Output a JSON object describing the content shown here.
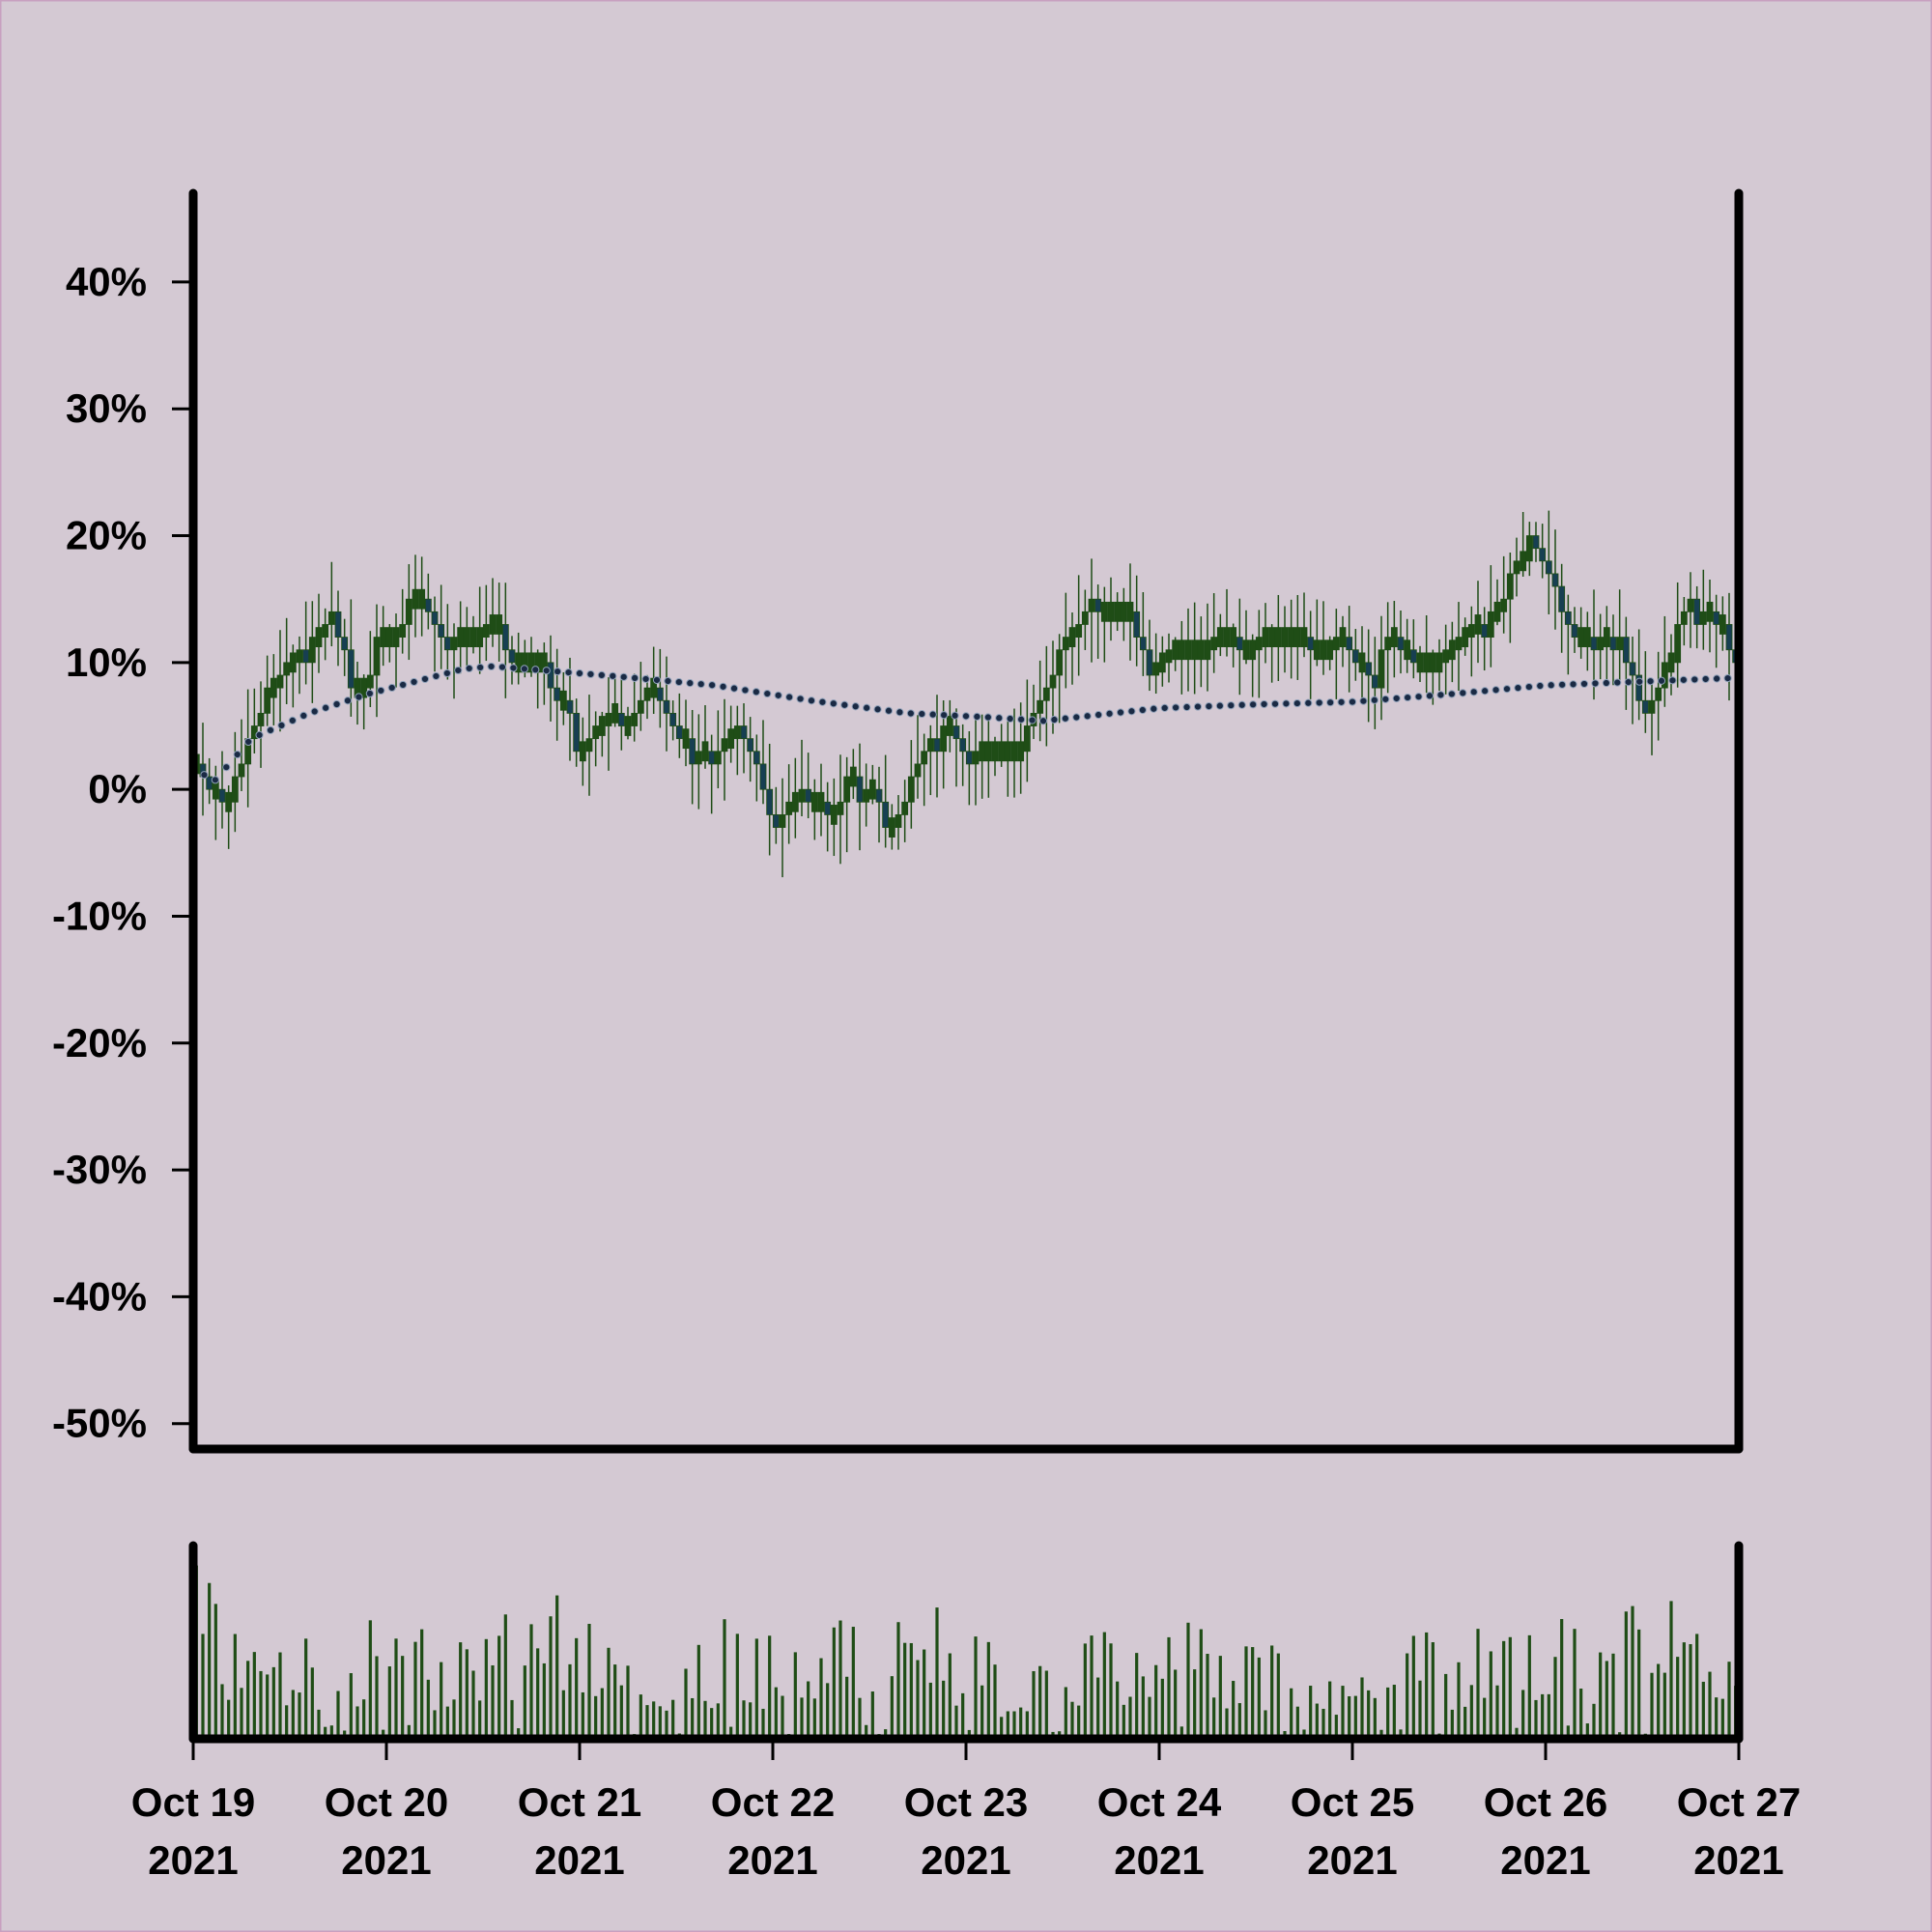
{
  "colors": {
    "background": "#d4c9d3",
    "frame": "#c8a0c0",
    "axis": "#000000",
    "candle_up": "#1f4d16",
    "candle_down": "#173f52",
    "moving_average": "#1a2a44",
    "volume": "#1f4d16"
  },
  "chart_data": {
    "type": "candlestick",
    "title": "",
    "xlabel": "",
    "ylabel": "",
    "ylim": [
      -52,
      47
    ],
    "yticks": [
      "-50%",
      "-40%",
      "-30%",
      "-20%",
      "-10%",
      "0%",
      "10%",
      "20%",
      "30%",
      "40%"
    ],
    "xticks": [
      {
        "date": "2021-10-19",
        "line1": "Oct 19",
        "line2": "2021"
      },
      {
        "date": "2021-10-20",
        "line1": "Oct 20",
        "line2": "2021"
      },
      {
        "date": "2021-10-21",
        "line1": "Oct 21",
        "line2": "2021"
      },
      {
        "date": "2021-10-22",
        "line1": "Oct 22",
        "line2": "2021"
      },
      {
        "date": "2021-10-23",
        "line1": "Oct 23",
        "line2": "2021"
      },
      {
        "date": "2021-10-24",
        "line1": "Oct 24",
        "line2": "2021"
      },
      {
        "date": "2021-10-25",
        "line1": "Oct 25",
        "line2": "2021"
      },
      {
        "date": "2021-10-26",
        "line1": "Oct 26",
        "line2": "2021"
      },
      {
        "date": "2021-10-27",
        "line1": "Oct 27",
        "line2": "2021"
      }
    ],
    "x_range": [
      "2021-10-19",
      "2021-10-27"
    ],
    "close_path": [
      [
        0.0,
        2
      ],
      [
        0.1,
        0
      ],
      [
        0.17,
        -2
      ],
      [
        0.3,
        5
      ],
      [
        0.4,
        8
      ],
      [
        0.55,
        11
      ],
      [
        0.7,
        13
      ],
      [
        0.78,
        12
      ],
      [
        0.82,
        8
      ],
      [
        0.9,
        8
      ],
      [
        0.95,
        12
      ],
      [
        1.05,
        12
      ],
      [
        1.1,
        14
      ],
      [
        1.16,
        16
      ],
      [
        1.2,
        14
      ],
      [
        1.3,
        12
      ],
      [
        1.45,
        12
      ],
      [
        1.55,
        13
      ],
      [
        1.65,
        10
      ],
      [
        1.8,
        10
      ],
      [
        1.85,
        8
      ],
      [
        1.95,
        6
      ],
      [
        2.0,
        2
      ],
      [
        2.05,
        4
      ],
      [
        2.15,
        6
      ],
      [
        2.25,
        5
      ],
      [
        2.35,
        8
      ],
      [
        2.42,
        7
      ],
      [
        2.5,
        5
      ],
      [
        2.6,
        3
      ],
      [
        2.7,
        2
      ],
      [
        2.8,
        5
      ],
      [
        2.9,
        3
      ],
      [
        3.0,
        -3
      ],
      [
        3.1,
        -1
      ],
      [
        3.2,
        -1
      ],
      [
        3.3,
        -2
      ],
      [
        3.4,
        0
      ],
      [
        3.5,
        0
      ],
      [
        3.6,
        -3
      ],
      [
        3.7,
        0
      ],
      [
        3.8,
        4
      ],
      [
        3.88,
        4
      ],
      [
        3.92,
        5
      ],
      [
        4.0,
        2
      ],
      [
        4.1,
        3
      ],
      [
        4.25,
        3
      ],
      [
        4.4,
        7
      ],
      [
        4.5,
        12
      ],
      [
        4.55,
        13
      ],
      [
        4.65,
        14
      ],
      [
        4.85,
        14
      ],
      [
        4.95,
        9
      ],
      [
        5.05,
        11
      ],
      [
        5.2,
        11
      ],
      [
        5.35,
        12
      ],
      [
        5.45,
        11
      ],
      [
        5.55,
        12
      ],
      [
        5.7,
        12
      ],
      [
        5.85,
        11
      ],
      [
        5.95,
        12
      ],
      [
        6.1,
        9
      ],
      [
        6.2,
        12
      ],
      [
        6.35,
        10
      ],
      [
        6.45,
        10
      ],
      [
        6.55,
        12
      ],
      [
        6.65,
        13
      ],
      [
        6.75,
        14
      ],
      [
        6.85,
        18
      ],
      [
        6.95,
        19
      ],
      [
        7.0,
        18
      ],
      [
        7.1,
        13
      ],
      [
        7.3,
        11
      ],
      [
        7.4,
        12
      ],
      [
        7.5,
        6
      ],
      [
        7.6,
        8
      ],
      [
        7.7,
        14
      ],
      [
        7.8,
        14
      ],
      [
        7.9,
        13
      ],
      [
        8.0,
        11
      ]
    ],
    "ma_path": [
      [
        0.0,
        2
      ],
      [
        0.1,
        0.5
      ],
      [
        0.3,
        4
      ],
      [
        0.6,
        6
      ],
      [
        0.9,
        7.5
      ],
      [
        1.2,
        8.7
      ],
      [
        1.4,
        9.5
      ],
      [
        1.55,
        9.7
      ],
      [
        1.8,
        9.4
      ],
      [
        2.2,
        8.9
      ],
      [
        2.7,
        8.2
      ],
      [
        3.2,
        7.0
      ],
      [
        3.7,
        6.0
      ],
      [
        4.1,
        5.7
      ],
      [
        4.4,
        5.4
      ],
      [
        4.7,
        5.9
      ],
      [
        5.0,
        6.4
      ],
      [
        5.5,
        6.7
      ],
      [
        6.0,
        6.9
      ],
      [
        6.5,
        7.5
      ],
      [
        7.0,
        8.2
      ],
      [
        7.5,
        8.5
      ],
      [
        8.0,
        8.8
      ]
    ],
    "volume_path": [
      [
        0.0,
        0.85
      ],
      [
        0.3,
        0.35
      ],
      [
        0.6,
        0.45
      ],
      [
        0.9,
        0.5
      ],
      [
        1.2,
        0.45
      ],
      [
        1.5,
        0.4
      ],
      [
        1.8,
        0.65
      ],
      [
        2.0,
        0.75
      ],
      [
        2.2,
        0.5
      ],
      [
        2.5,
        0.35
      ],
      [
        2.8,
        0.5
      ],
      [
        3.1,
        0.4
      ],
      [
        3.4,
        0.55
      ],
      [
        3.8,
        0.55
      ],
      [
        4.2,
        0.35
      ],
      [
        4.6,
        0.4
      ],
      [
        5.0,
        0.5
      ],
      [
        5.4,
        0.45
      ],
      [
        5.8,
        0.35
      ],
      [
        6.2,
        0.4
      ],
      [
        6.6,
        0.45
      ],
      [
        7.0,
        0.45
      ],
      [
        7.4,
        0.6
      ],
      [
        7.7,
        0.55
      ],
      [
        8.0,
        0.65
      ]
    ]
  }
}
